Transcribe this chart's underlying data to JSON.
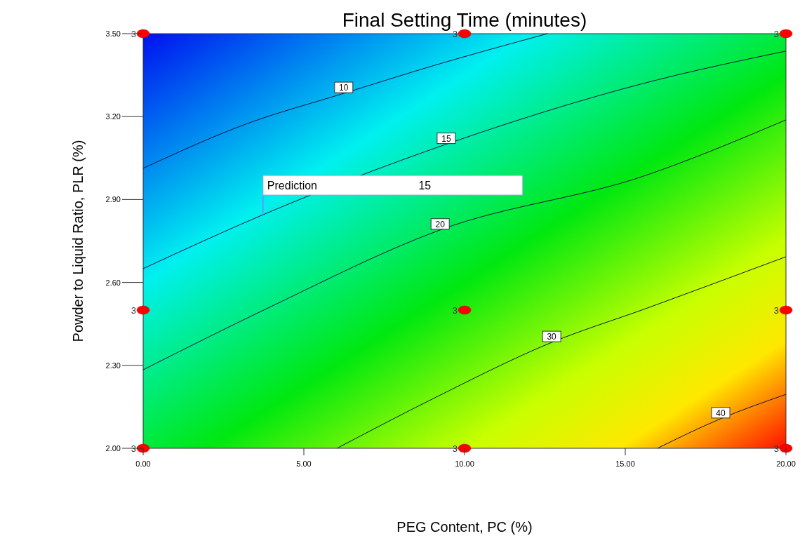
{
  "chart_data": {
    "type": "line",
    "title": "Final Setting Time (minutes)",
    "xlabel": "PEG Content, PC (%)",
    "ylabel": "Powder to Liquid Ratio, PLR (%)",
    "xlim": [
      0,
      20
    ],
    "ylim": [
      2,
      3.5
    ],
    "xticks": [
      {
        "value": 0,
        "label": "0.00"
      },
      {
        "value": 5,
        "label": "5.00"
      },
      {
        "value": 10,
        "label": "10.00"
      },
      {
        "value": 15,
        "label": "15.00"
      },
      {
        "value": 20,
        "label": "20.00"
      }
    ],
    "yticks": [
      {
        "value": 2,
        "label": "2.00"
      },
      {
        "value": 2.3,
        "label": "2.30"
      },
      {
        "value": 2.6,
        "label": "2.60"
      },
      {
        "value": 2.9,
        "label": "2.90"
      },
      {
        "value": 3.2,
        "label": "3.20"
      },
      {
        "value": 3.5,
        "label": "3.50"
      }
    ],
    "grid": false,
    "legend": false,
    "series": [
      {
        "name": "10",
        "color": "#10103a",
        "x": [
          0,
          3.2,
          6.24,
          9.08,
          12.58
        ],
        "values": [
          3.013,
          3.173,
          3.284,
          3.386,
          3.5
        ]
      },
      {
        "name": "15",
        "color": "#10103a",
        "x": [
          0,
          3.73,
          9.43,
          15.63,
          20
        ],
        "values": [
          2.65,
          2.845,
          3.1,
          3.322,
          3.437
        ]
      },
      {
        "name": "20",
        "color": "#10103a",
        "x": [
          0,
          3.84,
          9.24,
          15.63,
          20
        ],
        "values": [
          2.284,
          2.505,
          2.79,
          2.987,
          3.188
        ]
      },
      {
        "name": "30",
        "color": "#10103a",
        "x": [
          6.03,
          9.08,
          12.71,
          15.63,
          20
        ],
        "values": [
          2,
          2.183,
          2.383,
          2.505,
          2.693
        ]
      },
      {
        "name": "40",
        "color": "#10103a",
        "x": [
          16,
          17.97,
          20
        ],
        "values": [
          2,
          2.107,
          2.195
        ]
      },
      {
        "type": "scatter",
        "color": "#ff0000",
        "marker": "circle",
        "x": [
          0,
          0,
          0,
          10,
          10,
          10,
          20,
          20,
          20
        ],
        "values": [
          2,
          2.5,
          3.5,
          2,
          2.5,
          3.5,
          2,
          2.5,
          3.5
        ]
      }
    ],
    "annotations": [
      {
        "text": "Prediction 15",
        "x": 3.73,
        "y": 2.845
      },
      {
        "text": "3",
        "x": 0,
        "y": 2
      },
      {
        "text": "3",
        "x": 0,
        "y": 2.5
      },
      {
        "text": "3",
        "x": 0,
        "y": 3.5
      },
      {
        "text": "3",
        "x": 10,
        "y": 2
      },
      {
        "text": "3",
        "x": 10,
        "y": 2.5
      },
      {
        "text": "3",
        "x": 10,
        "y": 3.5
      },
      {
        "text": "3",
        "x": 20,
        "y": 2
      },
      {
        "text": "3",
        "x": 20,
        "y": 2.5
      },
      {
        "text": "3",
        "x": 20,
        "y": 3.5
      }
    ]
  }
}
